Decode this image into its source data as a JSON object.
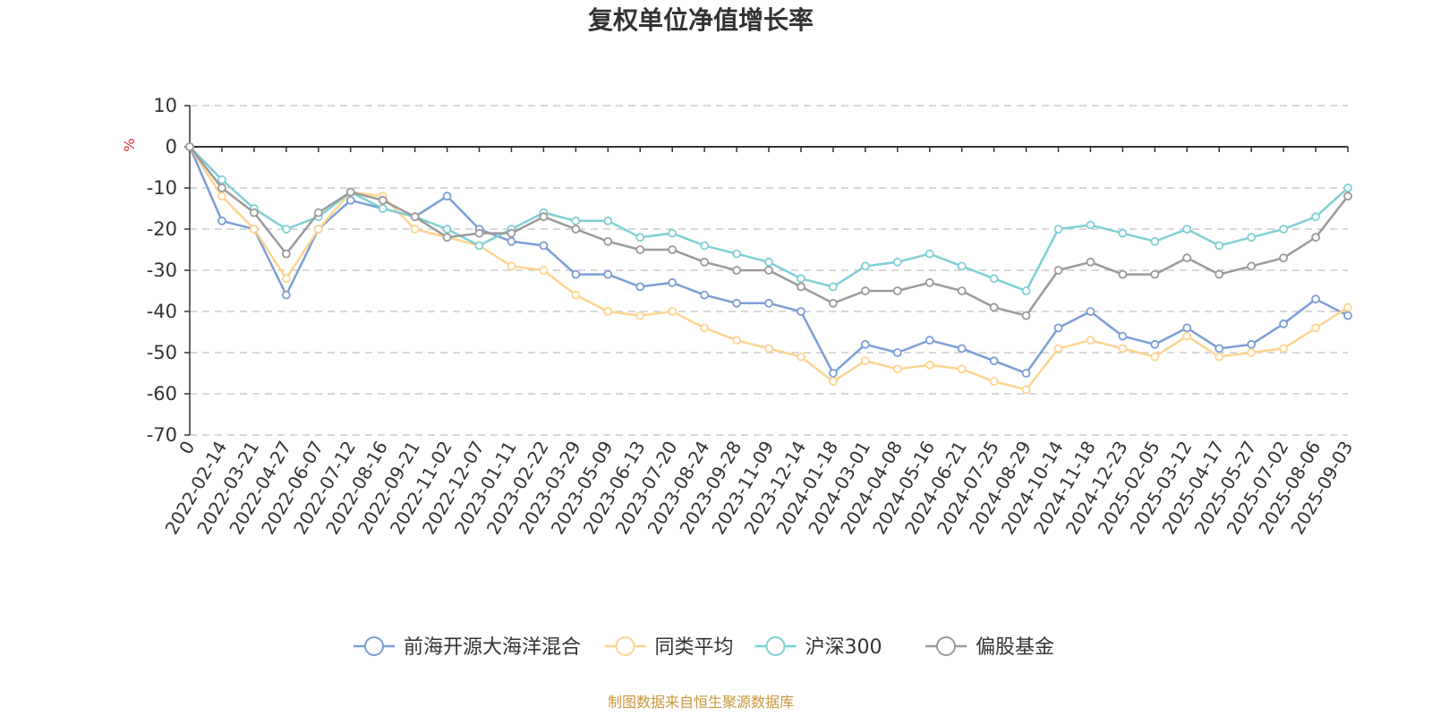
{
  "chart_data": {
    "type": "line",
    "title": "复权单位净值增长率",
    "ylabel": "%",
    "ylim": [
      -70,
      10
    ],
    "yticks": [
      10,
      0,
      -10,
      -20,
      -30,
      -40,
      -50,
      -60,
      -70
    ],
    "grid": true,
    "legend_position": "bottom",
    "xtick_labels": [
      "0",
      "2022-02-14",
      "2022-03-21",
      "2022-04-27",
      "2022-06-07",
      "2022-07-12",
      "2022-08-16",
      "2022-09-21",
      "2022-11-02",
      "2022-12-07",
      "2023-01-11",
      "2023-02-22",
      "2023-03-29",
      "2023-05-09",
      "2023-06-13",
      "2023-07-20",
      "2023-08-24",
      "2023-09-28",
      "2023-11-09",
      "2023-12-14",
      "2024-01-18",
      "2024-03-01",
      "2024-04-08",
      "2024-05-16",
      "2024-06-21",
      "2024-07-25",
      "2024-08-29",
      "2024-10-14",
      "2024-11-18",
      "2024-12-23",
      "2025-02-05",
      "2025-03-12",
      "2025-04-17",
      "2025-05-27",
      "2025-07-02",
      "2025-08-06",
      "2025-09-03"
    ],
    "series": [
      {
        "name": "前海开源大海洋混合",
        "color": "#7b9ed6",
        "values": [
          0,
          -18,
          -20,
          -36,
          -20,
          -13,
          -15,
          -17,
          -12,
          -20,
          -23,
          -24,
          -31,
          -31,
          -34,
          -33,
          -36,
          -38,
          -38,
          -40,
          -55,
          -48,
          -50,
          -47,
          -49,
          -52,
          -55,
          -44,
          -40,
          -46,
          -48,
          -44,
          -49,
          -48,
          -43,
          -37,
          -41
        ]
      },
      {
        "name": "同类平均",
        "color": "#fdd48f",
        "values": [
          0,
          -12,
          -20,
          -32,
          -20,
          -11,
          -12,
          -20,
          -22,
          -24,
          -29,
          -30,
          -36,
          -40,
          -41,
          -40,
          -44,
          -47,
          -49,
          -51,
          -57,
          -52,
          -54,
          -53,
          -54,
          -57,
          -59,
          -49,
          -47,
          -49,
          -51,
          -46,
          -51,
          -50,
          -49,
          -44,
          -39
        ]
      },
      {
        "name": "沪深300",
        "color": "#7fd0d3",
        "values": [
          0,
          -8,
          -15,
          -20,
          -17,
          -11,
          -15,
          -17,
          -20,
          -24,
          -20,
          -16,
          -18,
          -18,
          -22,
          -21,
          -24,
          -26,
          -28,
          -32,
          -34,
          -29,
          -28,
          -26,
          -29,
          -32,
          -35,
          -20,
          -19,
          -21,
          -23,
          -20,
          -24,
          -22,
          -20,
          -17,
          -10
        ]
      },
      {
        "name": "偏股基金",
        "color": "#9a9a9a",
        "values": [
          0,
          -10,
          -16,
          -26,
          -16,
          -11,
          -13,
          -17,
          -22,
          -21,
          -21,
          -17,
          -20,
          -23,
          -25,
          -25,
          -28,
          -30,
          -30,
          -34,
          -38,
          -35,
          -35,
          -33,
          -35,
          -39,
          -41,
          -30,
          -28,
          -31,
          -31,
          -27,
          -31,
          -29,
          -27,
          -22,
          -12
        ]
      }
    ]
  },
  "footer": {
    "source": "制图数据来自恒生聚源数据库"
  }
}
